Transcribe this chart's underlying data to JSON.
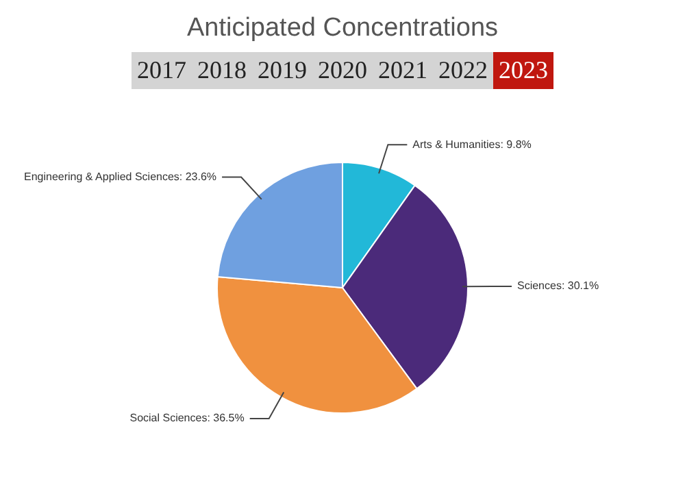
{
  "chart_data": {
    "type": "pie",
    "title": "Anticipated Concentrations",
    "annotations": [
      "2017",
      "2018",
      "2019",
      "2020",
      "2021",
      "2022",
      "2023"
    ],
    "categories": [
      "Arts & Humanities",
      "Sciences",
      "Social Sciences",
      "Engineering & Applied Sciences"
    ],
    "values": [
      9.8,
      30.1,
      36.5,
      23.6
    ],
    "value_labels": [
      "9.8%",
      "30.1%",
      "36.5%",
      "23.6%"
    ],
    "colors": [
      "#22b8d8",
      "#4b2a7a",
      "#f0913f",
      "#6fa0e0"
    ],
    "legend": false
  }
}
